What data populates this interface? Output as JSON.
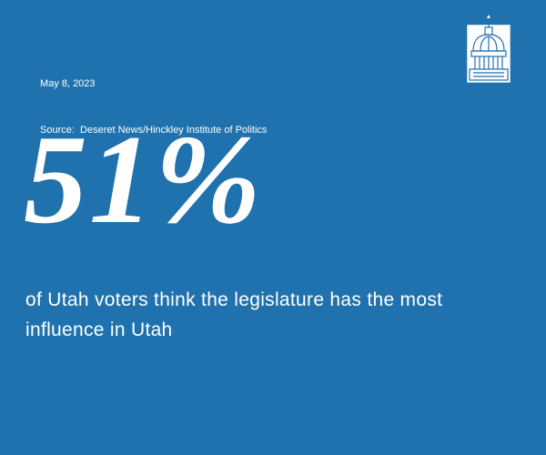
{
  "date": "May 8, 2023",
  "source": "Source:  Deseret News/Hinckley Institute of Politics",
  "stat": "51%",
  "description": "of Utah voters think the legislature has the most influence in Utah"
}
